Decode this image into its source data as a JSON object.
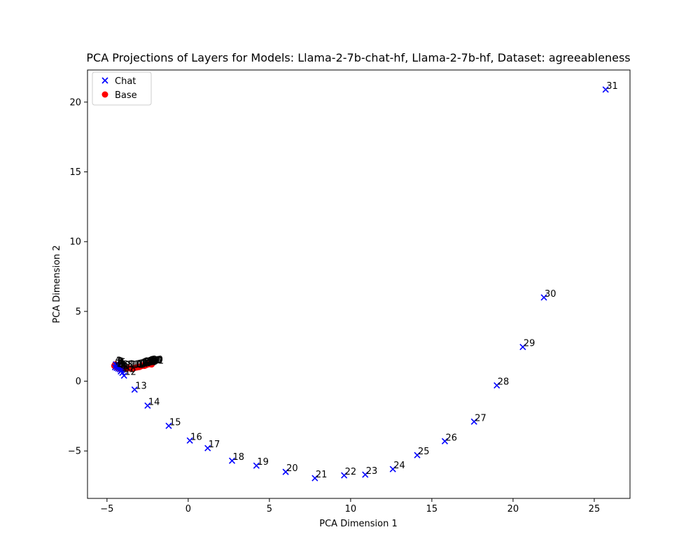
{
  "chart_data": {
    "type": "scatter",
    "title": "PCA Projections of Layers for Models: Llama-2-7b-chat-hf, Llama-2-7b-hf, Dataset: agreeableness",
    "xlabel": "PCA Dimension 1",
    "ylabel": "PCA Dimension 2",
    "xlim": [
      -6.2,
      27.2
    ],
    "ylim": [
      -8.4,
      22.3
    ],
    "xticks": [
      -5,
      0,
      5,
      10,
      15,
      20,
      25
    ],
    "yticks": [
      -5,
      0,
      5,
      10,
      15,
      20
    ],
    "grid": false,
    "legend_position": "top-left",
    "series": [
      {
        "name": "Chat",
        "marker": "x",
        "color": "#0000ff",
        "points": [
          {
            "label": "0",
            "x": -4.4,
            "y": 1.1
          },
          {
            "label": "1",
            "x": -4.5,
            "y": 1.0
          },
          {
            "label": "2",
            "x": -4.45,
            "y": 1.2
          },
          {
            "label": "3",
            "x": -4.35,
            "y": 1.15
          },
          {
            "label": "4",
            "x": -4.3,
            "y": 1.05
          },
          {
            "label": "5",
            "x": -4.4,
            "y": 0.95
          },
          {
            "label": "6",
            "x": -4.25,
            "y": 1.1
          },
          {
            "label": "7",
            "x": -4.3,
            "y": 0.9
          },
          {
            "label": "8",
            "x": -4.2,
            "y": 0.85
          },
          {
            "label": "9",
            "x": -4.1,
            "y": 0.8
          },
          {
            "label": "10",
            "x": -4.15,
            "y": 0.7
          },
          {
            "label": "11",
            "x": -4.05,
            "y": 0.6
          },
          {
            "label": "12",
            "x": -3.95,
            "y": 0.4
          },
          {
            "label": "13",
            "x": -3.3,
            "y": -0.6
          },
          {
            "label": "14",
            "x": -2.5,
            "y": -1.75
          },
          {
            "label": "15",
            "x": -1.2,
            "y": -3.2
          },
          {
            "label": "16",
            "x": 0.1,
            "y": -4.25
          },
          {
            "label": "17",
            "x": 1.2,
            "y": -4.8
          },
          {
            "label": "18",
            "x": 2.7,
            "y": -5.7
          },
          {
            "label": "19",
            "x": 4.2,
            "y": -6.05
          },
          {
            "label": "20",
            "x": 6.0,
            "y": -6.5
          },
          {
            "label": "21",
            "x": 7.8,
            "y": -6.95
          },
          {
            "label": "22",
            "x": 9.6,
            "y": -6.75
          },
          {
            "label": "23",
            "x": 10.9,
            "y": -6.7
          },
          {
            "label": "24",
            "x": 12.6,
            "y": -6.3
          },
          {
            "label": "25",
            "x": 14.1,
            "y": -5.3
          },
          {
            "label": "26",
            "x": 15.8,
            "y": -4.3
          },
          {
            "label": "27",
            "x": 17.6,
            "y": -2.9
          },
          {
            "label": "28",
            "x": 19.0,
            "y": -0.3
          },
          {
            "label": "29",
            "x": 20.6,
            "y": 2.45
          },
          {
            "label": "30",
            "x": 21.9,
            "y": 6.0
          },
          {
            "label": "31",
            "x": 25.7,
            "y": 20.9
          }
        ]
      },
      {
        "name": "Base",
        "marker": "o",
        "color": "#ff0000",
        "points": [
          {
            "label": "0",
            "x": -4.55,
            "y": 1.1
          },
          {
            "label": "1",
            "x": -4.5,
            "y": 1.2
          },
          {
            "label": "2",
            "x": -4.4,
            "y": 1.0
          },
          {
            "label": "3",
            "x": -4.3,
            "y": 0.95
          },
          {
            "label": "4",
            "x": -4.2,
            "y": 0.9
          },
          {
            "label": "5",
            "x": -4.1,
            "y": 0.92
          },
          {
            "label": "6",
            "x": -4.0,
            "y": 0.88
          },
          {
            "label": "7",
            "x": -3.9,
            "y": 0.9
          },
          {
            "label": "8",
            "x": -3.8,
            "y": 0.93
          },
          {
            "label": "9",
            "x": -3.7,
            "y": 0.95
          },
          {
            "label": "10",
            "x": -3.6,
            "y": 0.92
          },
          {
            "label": "11",
            "x": -3.5,
            "y": 0.9
          },
          {
            "label": "12",
            "x": -3.4,
            "y": 0.93
          },
          {
            "label": "13",
            "x": -3.3,
            "y": 0.95
          },
          {
            "label": "14",
            "x": -3.2,
            "y": 0.98
          },
          {
            "label": "15",
            "x": -3.1,
            "y": 1.0
          },
          {
            "label": "16",
            "x": -3.0,
            "y": 1.02
          },
          {
            "label": "17",
            "x": -2.95,
            "y": 1.05
          },
          {
            "label": "18",
            "x": -2.9,
            "y": 1.08
          },
          {
            "label": "19",
            "x": -2.85,
            "y": 1.1
          },
          {
            "label": "20",
            "x": -2.8,
            "y": 1.12
          },
          {
            "label": "21",
            "x": -2.75,
            "y": 1.15
          },
          {
            "label": "22",
            "x": -2.7,
            "y": 1.1
          },
          {
            "label": "23",
            "x": -2.65,
            "y": 1.12
          },
          {
            "label": "24",
            "x": -2.6,
            "y": 1.15
          },
          {
            "label": "25",
            "x": -2.55,
            "y": 1.18
          },
          {
            "label": "26",
            "x": -2.5,
            "y": 1.2
          },
          {
            "label": "27",
            "x": -2.45,
            "y": 1.22
          },
          {
            "label": "28",
            "x": -2.4,
            "y": 1.25
          },
          {
            "label": "29",
            "x": -2.35,
            "y": 1.22
          },
          {
            "label": "30",
            "x": -2.3,
            "y": 1.28
          },
          {
            "label": "31",
            "x": -2.25,
            "y": 1.2
          }
        ]
      }
    ]
  }
}
